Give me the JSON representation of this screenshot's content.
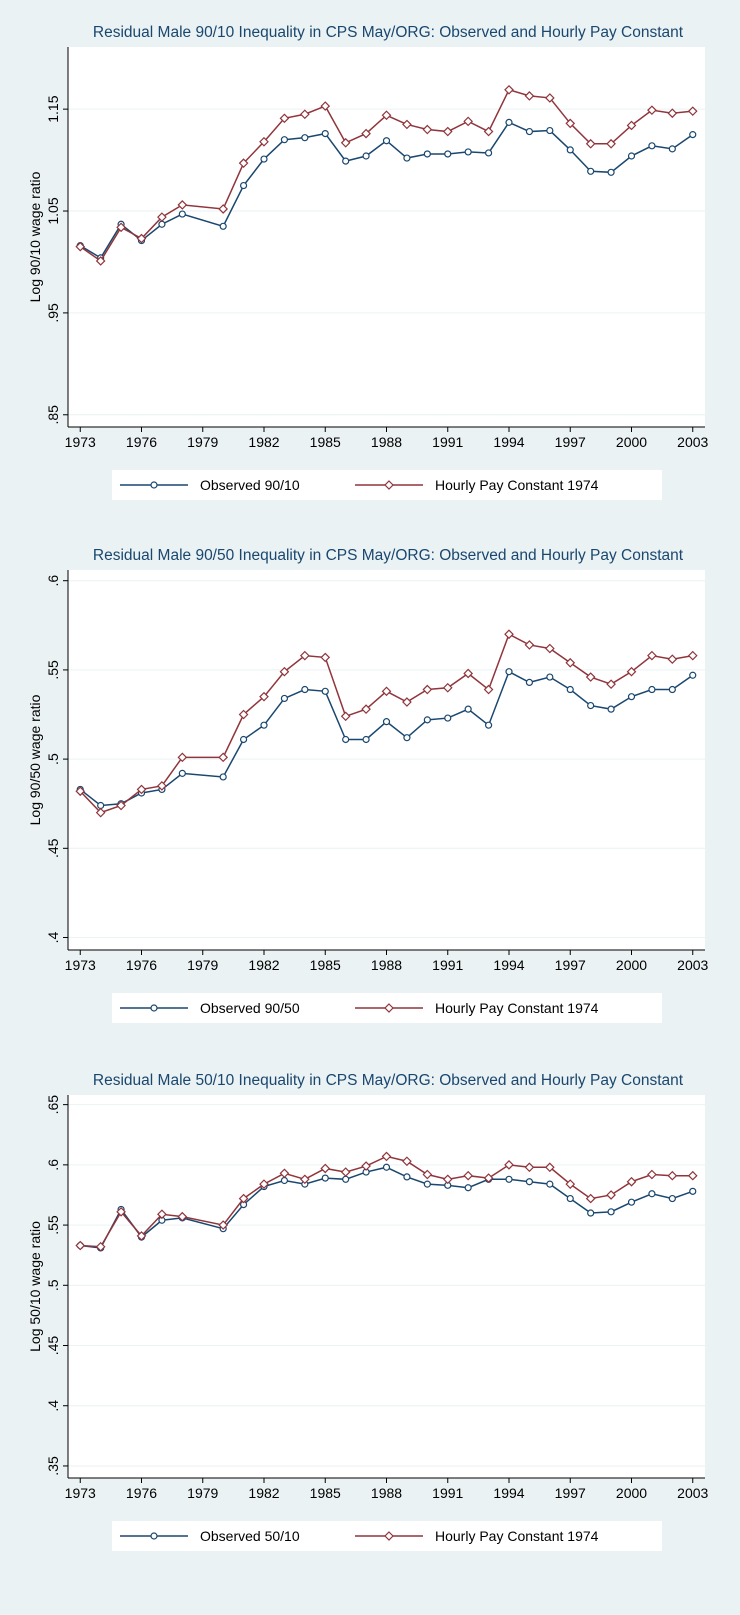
{
  "chart_data": [
    {
      "type": "line",
      "title": "Residual Male 90/10 Inequality in CPS May/ORG: Observed and Hourly Pay Constant",
      "y_label": "Log 90/10 wage ratio",
      "x": [
        1973,
        1974,
        1975,
        1976,
        1977,
        1978,
        1980,
        1981,
        1982,
        1983,
        1984,
        1985,
        1986,
        1987,
        1988,
        1989,
        1990,
        1991,
        1992,
        1993,
        1994,
        1995,
        1996,
        1997,
        1998,
        1999,
        2000,
        2001,
        2002,
        2003
      ],
      "series": [
        {
          "name": "Observed 90/10",
          "color": "#1a476f",
          "marker": "circle",
          "values": [
            1.016,
            1.004,
            1.037,
            1.021,
            1.037,
            1.047,
            1.035,
            1.075,
            1.101,
            1.12,
            1.122,
            1.126,
            1.099,
            1.104,
            1.119,
            1.102,
            1.106,
            1.106,
            1.108,
            1.107,
            1.137,
            1.128,
            1.129,
            1.11,
            1.089,
            1.088,
            1.104,
            1.114,
            1.111,
            1.125
          ]
        },
        {
          "name": "Hourly Pay Constant 1974",
          "color": "#90353b",
          "marker": "diamond",
          "values": [
            1.015,
            1.001,
            1.034,
            1.023,
            1.044,
            1.056,
            1.052,
            1.097,
            1.118,
            1.141,
            1.145,
            1.153,
            1.117,
            1.126,
            1.144,
            1.135,
            1.13,
            1.128,
            1.138,
            1.128,
            1.169,
            1.163,
            1.161,
            1.136,
            1.116,
            1.116,
            1.134,
            1.149,
            1.146,
            1.148
          ]
        }
      ],
      "xlim": [
        1972.4,
        2003.6
      ],
      "xticks": [
        1973,
        1976,
        1979,
        1982,
        1985,
        1988,
        1991,
        1994,
        1997,
        2000,
        2003
      ],
      "ylim": [
        0.838,
        1.211
      ],
      "yticks": [
        {
          "value": 0.85,
          "label": ".85"
        },
        {
          "value": 0.95,
          "label": ".95"
        },
        1.05,
        1.15
      ],
      "grid": true
    },
    {
      "type": "line",
      "title": "Residual Male 90/50 Inequality in CPS May/ORG: Observed and Hourly Pay Constant",
      "y_label": "Log 90/50 wage ratio",
      "x": [
        1973,
        1974,
        1975,
        1976,
        1977,
        1978,
        1980,
        1981,
        1982,
        1983,
        1984,
        1985,
        1986,
        1987,
        1988,
        1989,
        1990,
        1991,
        1992,
        1993,
        1994,
        1995,
        1996,
        1997,
        1998,
        1999,
        2000,
        2001,
        2002,
        2003
      ],
      "series": [
        {
          "name": "Observed 90/50",
          "color": "#1a476f",
          "marker": "circle",
          "values": [
            0.483,
            0.474,
            0.475,
            0.481,
            0.483,
            0.492,
            0.49,
            0.511,
            0.519,
            0.534,
            0.539,
            0.538,
            0.511,
            0.511,
            0.521,
            0.512,
            0.522,
            0.523,
            0.528,
            0.519,
            0.549,
            0.543,
            0.546,
            0.539,
            0.53,
            0.528,
            0.535,
            0.539,
            0.539,
            0.547
          ]
        },
        {
          "name": "Hourly Pay Constant 1974",
          "color": "#90353b",
          "marker": "diamond",
          "values": [
            0.482,
            0.47,
            0.474,
            0.483,
            0.485,
            0.501,
            0.501,
            0.525,
            0.535,
            0.549,
            0.558,
            0.557,
            0.524,
            0.528,
            0.538,
            0.532,
            0.539,
            0.54,
            0.548,
            0.539,
            0.57,
            0.564,
            0.562,
            0.554,
            0.546,
            0.542,
            0.549,
            0.558,
            0.556,
            0.558
          ]
        }
      ],
      "xlim": [
        1972.4,
        2003.6
      ],
      "xticks": [
        1973,
        1976,
        1979,
        1982,
        1985,
        1988,
        1991,
        1994,
        1997,
        2000,
        2003
      ],
      "ylim": [
        0.393,
        0.606
      ],
      "yticks": [
        {
          "value": 0.4,
          "label": ".4"
        },
        {
          "value": 0.45,
          "label": ".45"
        },
        {
          "value": 0.5,
          "label": ".5"
        },
        {
          "value": 0.55,
          "label": ".55"
        },
        {
          "value": 0.6,
          "label": ".6"
        }
      ],
      "grid": true
    },
    {
      "type": "line",
      "title": "Residual Male 50/10 Inequality in CPS May/ORG: Observed and Hourly Pay Constant",
      "y_label": "Log 50/10 wage ratio",
      "x": [
        1973,
        1974,
        1975,
        1976,
        1977,
        1978,
        1980,
        1981,
        1982,
        1983,
        1984,
        1985,
        1986,
        1987,
        1988,
        1989,
        1990,
        1991,
        1992,
        1993,
        1994,
        1995,
        1996,
        1997,
        1998,
        1999,
        2000,
        2001,
        2002,
        2003
      ],
      "series": [
        {
          "name": "Observed 50/10",
          "color": "#1a476f",
          "marker": "circle",
          "values": [
            0.533,
            0.531,
            0.563,
            0.54,
            0.554,
            0.556,
            0.547,
            0.567,
            0.582,
            0.587,
            0.584,
            0.589,
            0.588,
            0.594,
            0.598,
            0.59,
            0.584,
            0.583,
            0.581,
            0.588,
            0.588,
            0.586,
            0.584,
            0.572,
            0.56,
            0.561,
            0.569,
            0.576,
            0.572,
            0.578
          ]
        },
        {
          "name": "Hourly Pay Constant 1974",
          "color": "#90353b",
          "marker": "diamond",
          "values": [
            0.533,
            0.532,
            0.561,
            0.541,
            0.559,
            0.557,
            0.55,
            0.572,
            0.584,
            0.593,
            0.588,
            0.597,
            0.594,
            0.599,
            0.607,
            0.603,
            0.592,
            0.588,
            0.591,
            0.589,
            0.6,
            0.598,
            0.598,
            0.584,
            0.572,
            0.575,
            0.586,
            0.592,
            0.591,
            0.591
          ]
        }
      ],
      "xlim": [
        1972.4,
        2003.6
      ],
      "xticks": [
        1973,
        1976,
        1979,
        1982,
        1985,
        1988,
        1991,
        1994,
        1997,
        2000,
        2003
      ],
      "ylim": [
        0.34,
        0.658
      ],
      "yticks": [
        {
          "value": 0.35,
          "label": ".35"
        },
        {
          "value": 0.4,
          "label": ".4"
        },
        {
          "value": 0.45,
          "label": ".45"
        },
        {
          "value": 0.5,
          "label": ".5"
        },
        {
          "value": 0.55,
          "label": ".55"
        },
        {
          "value": 0.6,
          "label": ".6"
        },
        {
          "value": 0.65,
          "label": ".65"
        }
      ],
      "grid": true
    }
  ]
}
